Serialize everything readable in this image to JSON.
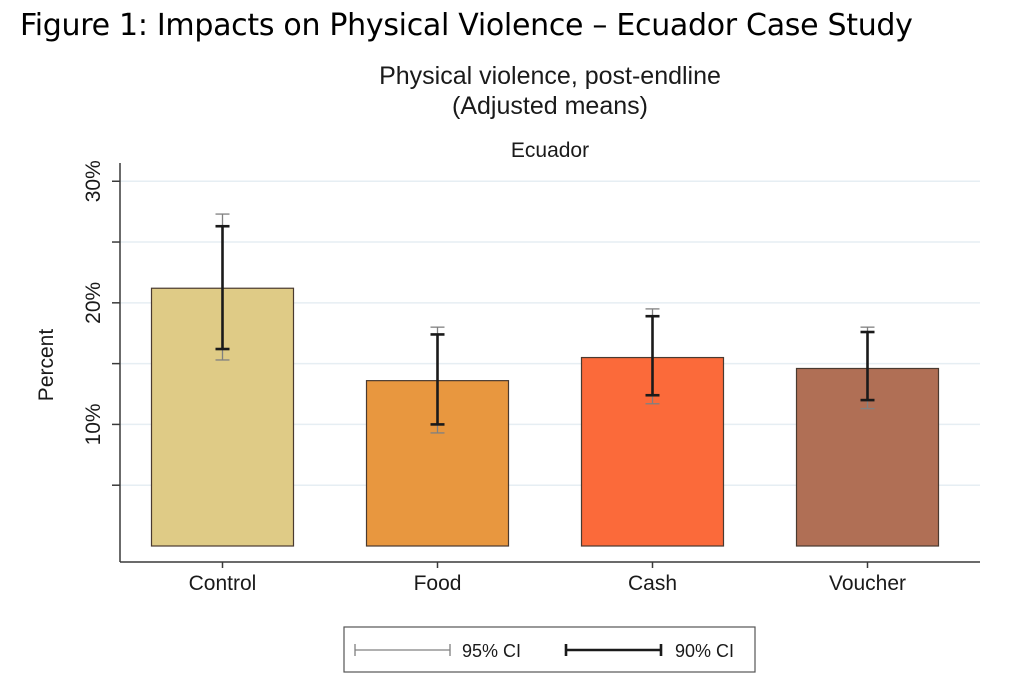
{
  "figure_caption": "Figure 1: Impacts on Physical Violence – Ecuador Case Study",
  "chart_data": {
    "type": "bar",
    "title": "Physical violence, post-endline",
    "subtitle": "(Adjusted means)",
    "panel_label": "Ecuador",
    "xlabel": "",
    "ylabel": "Percent",
    "ylim": [
      0,
      31.5
    ],
    "yticks": [
      5,
      10,
      15,
      20,
      25,
      30
    ],
    "ytick_labels": [
      "",
      "10%",
      "",
      "20%",
      "",
      "30%"
    ],
    "grid": true,
    "categories": [
      "Control",
      "Food",
      "Cash",
      "Voucher"
    ],
    "values": [
      21.2,
      13.6,
      15.5,
      14.6
    ],
    "ci95": [
      [
        15.3,
        27.3
      ],
      [
        9.3,
        18.0
      ],
      [
        11.7,
        19.5
      ],
      [
        11.3,
        18.0
      ]
    ],
    "ci90": [
      [
        16.2,
        26.3
      ],
      [
        10.0,
        17.4
      ],
      [
        12.4,
        18.9
      ],
      [
        12.0,
        17.6
      ]
    ],
    "colors": [
      "#dfcb86",
      "#e8973f",
      "#fb6a3a",
      "#b06f55"
    ],
    "legend": {
      "position": "bottom",
      "entries": [
        "95% CI",
        "90% CI"
      ]
    }
  }
}
